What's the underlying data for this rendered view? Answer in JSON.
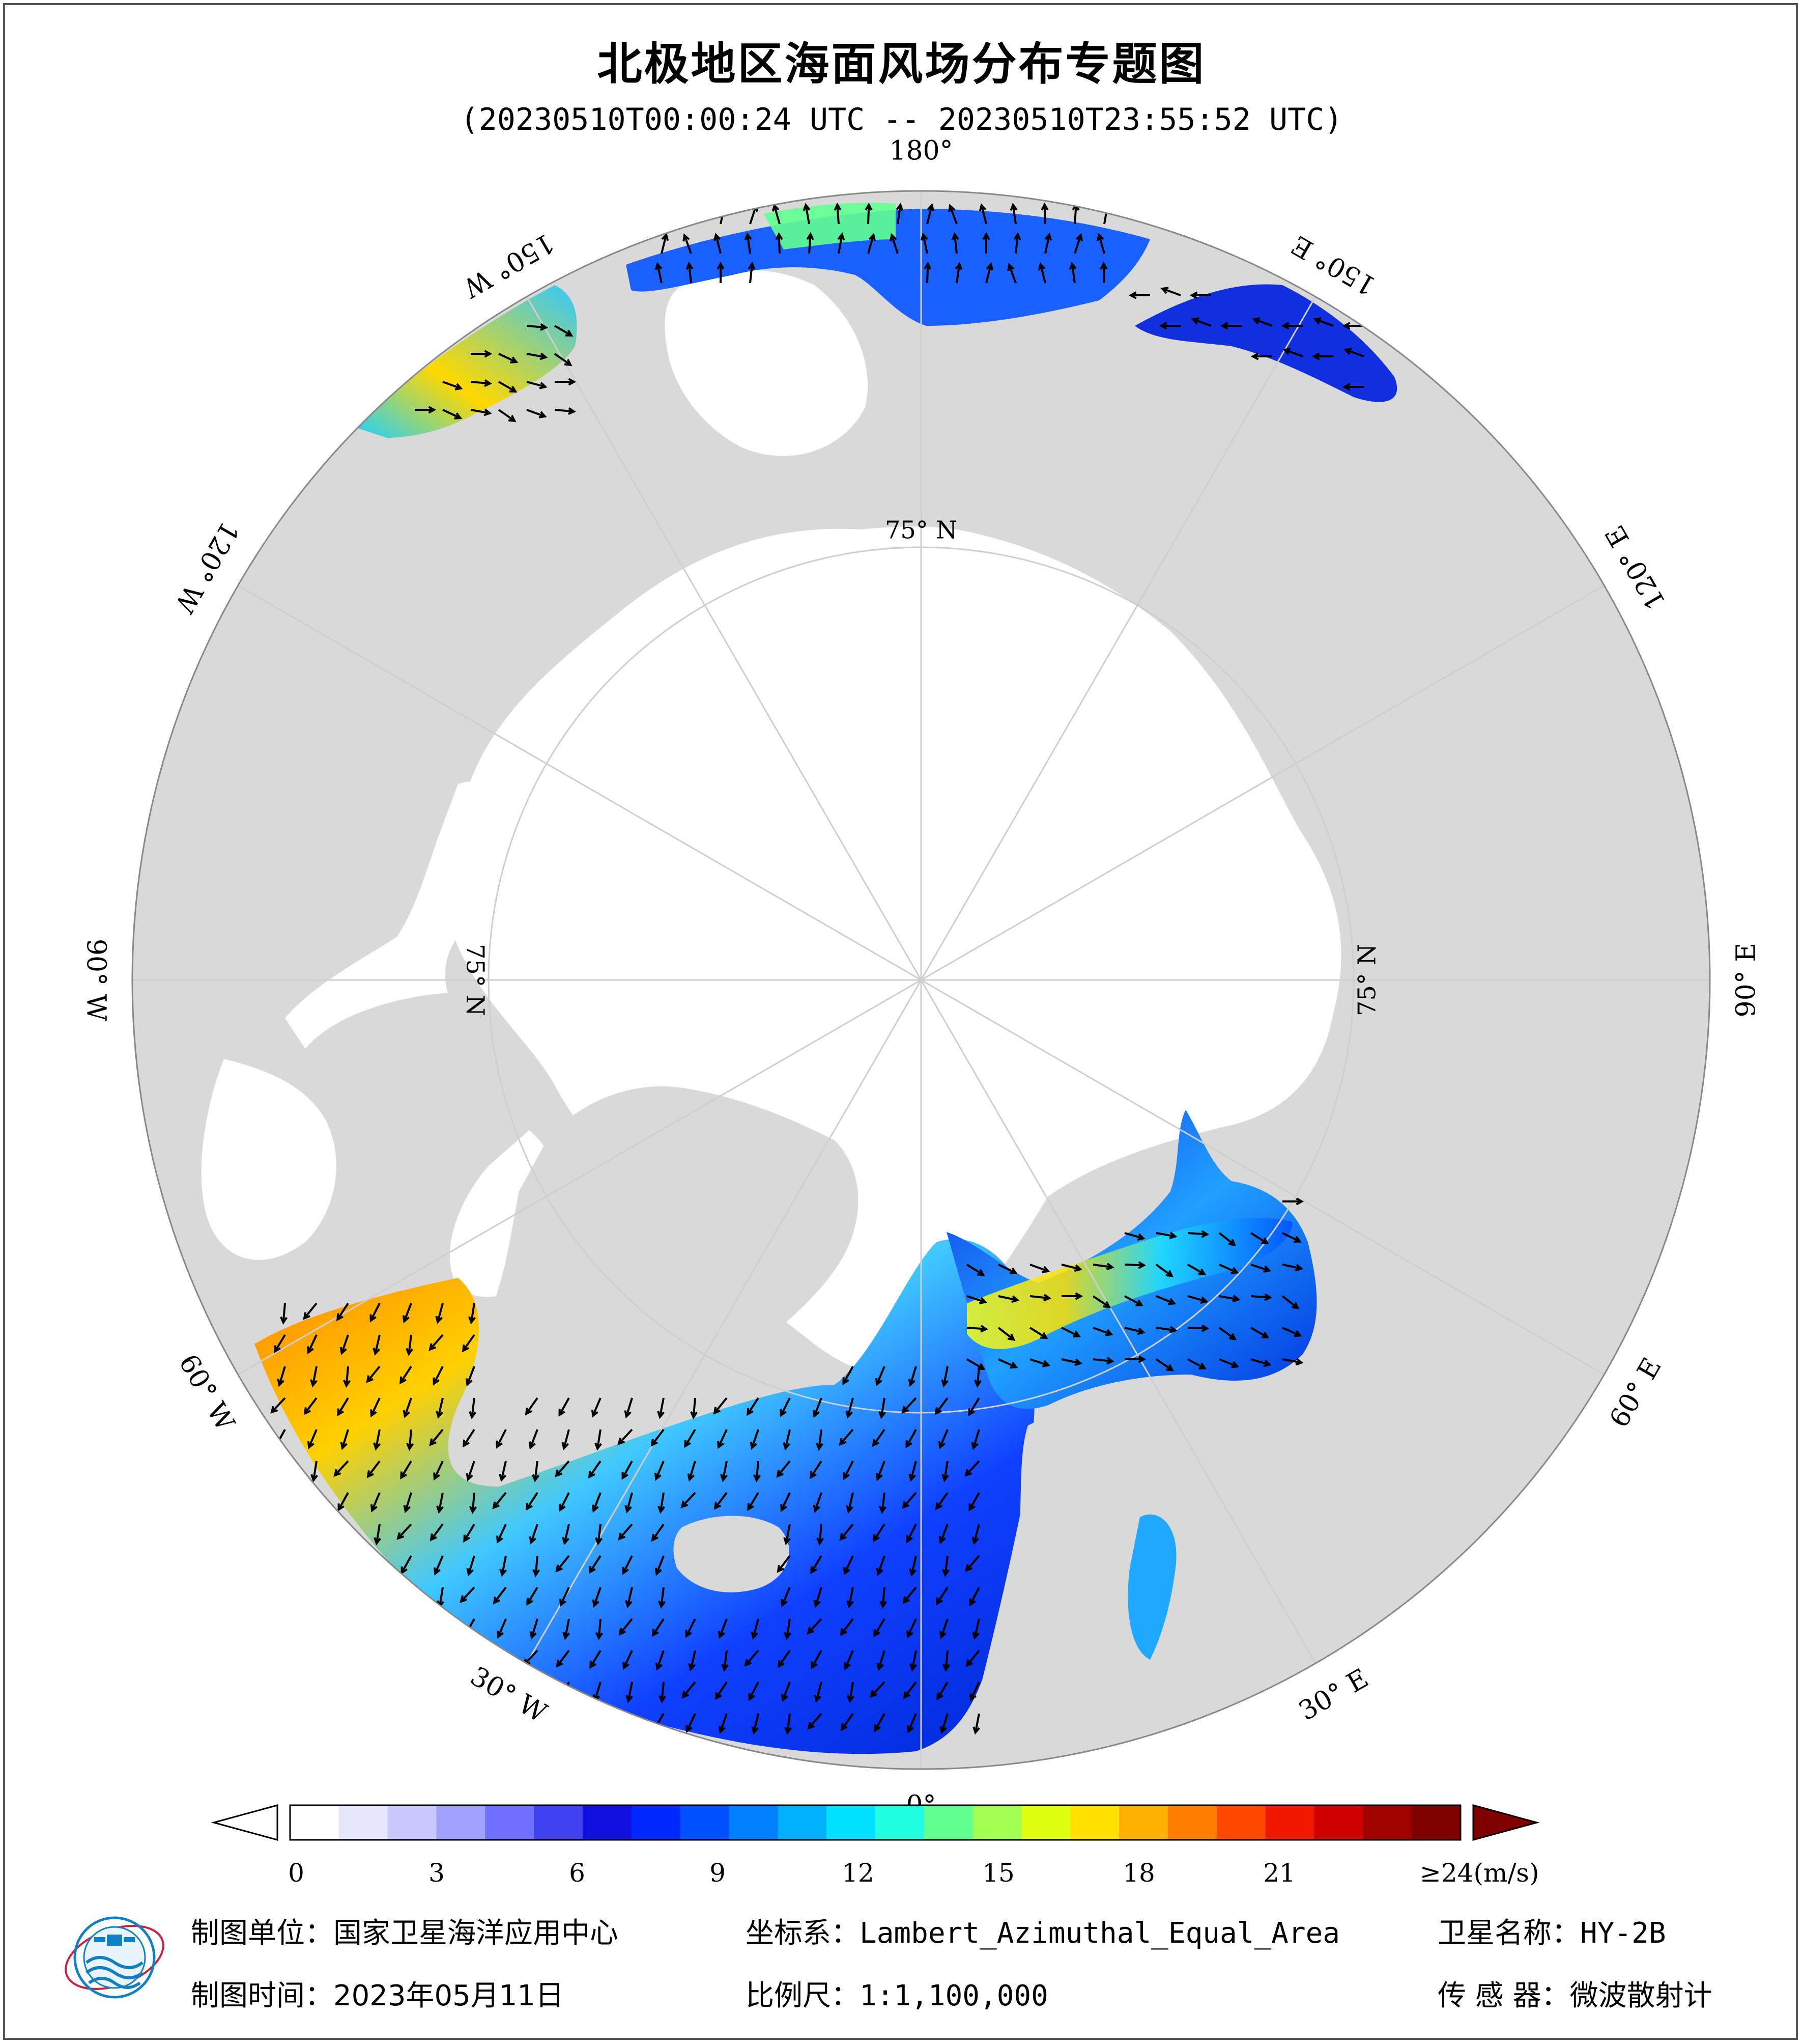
{
  "title": "北极地区海面风场分布专题图",
  "subtitle": "(20230510T00:00:24 UTC -- 20230510T23:55:52 UTC)",
  "map": {
    "longitude_labels": [
      {
        "text": "180°",
        "lon": 180
      },
      {
        "text": "150° E",
        "lon": 150
      },
      {
        "text": "120° E",
        "lon": 120
      },
      {
        "text": "90° E",
        "lon": 90
      },
      {
        "text": "60° E",
        "lon": 60
      },
      {
        "text": "30° E",
        "lon": 30
      },
      {
        "text": "0°",
        "lon": 0
      },
      {
        "text": "30° W",
        "lon": -30
      },
      {
        "text": "60° W",
        "lon": -60
      },
      {
        "text": "90° W",
        "lon": -90
      },
      {
        "text": "120° W",
        "lon": -120
      },
      {
        "text": "150° W",
        "lon": -150
      }
    ],
    "latitude_labels": [
      {
        "text": "75° N",
        "lat": 75
      }
    ],
    "land_color": "#d9d9d9",
    "ice_color": "#ffffff"
  },
  "colorbar": {
    "ticks": [
      "0",
      "3",
      "6",
      "9",
      "12",
      "15",
      "18",
      "21"
    ],
    "max_label": "≥24",
    "unit": "(m/s)",
    "min": 0,
    "max": 24,
    "colors": [
      "#ffffff",
      "#e6e6ff",
      "#c8c8ff",
      "#a0a0ff",
      "#7070ff",
      "#4040f0",
      "#1010e0",
      "#0028ff",
      "#0050ff",
      "#0080ff",
      "#00b0ff",
      "#00e0ff",
      "#20ffe0",
      "#60ff90",
      "#a0ff50",
      "#e0ff10",
      "#ffe000",
      "#ffb000",
      "#ff8000",
      "#ff4800",
      "#f01800",
      "#d00000",
      "#a00000",
      "#800000"
    ]
  },
  "footer": {
    "unit_label": "制图单位：",
    "unit_value": "国家卫星海洋应用中心",
    "coord_label": "坐标系：",
    "coord_value": "Lambert_Azimuthal_Equal_Area",
    "satellite_label": "卫星名称：",
    "satellite_value": "HY-2B",
    "date_label": "制图时间：",
    "date_value": "2023年05月11日",
    "scale_label": "比例尺：",
    "scale_value": "1:1,100,000",
    "sensor_label": "传 感 器：",
    "sensor_value": "微波散射计"
  }
}
